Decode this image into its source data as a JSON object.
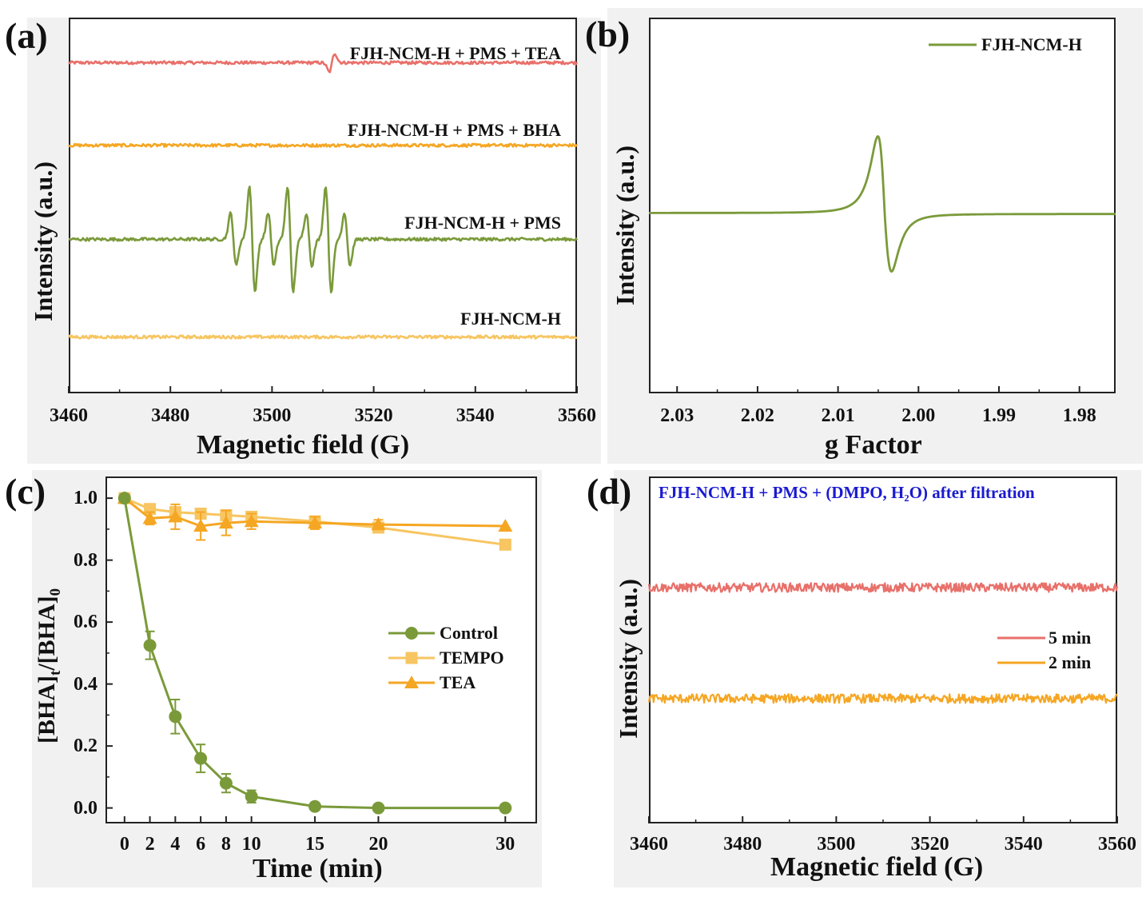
{
  "panels": {
    "a": {
      "letter": "(a)"
    },
    "b": {
      "letter": "(b)"
    },
    "c": {
      "letter": "(c)"
    },
    "d": {
      "letter": "(d)"
    }
  },
  "chart_data": [
    {
      "id": "a",
      "type": "line",
      "xlabel": "Magnetic field (G)",
      "ylabel": "Intensity (a.u.)",
      "xlim": [
        3460,
        3560
      ],
      "xticks": [
        3460,
        3480,
        3500,
        3520,
        3540,
        3560
      ],
      "series": [
        {
          "name": "FJH-NCM-H + PMS + TEA",
          "color": "#e8706a",
          "offset": 0.88,
          "features": [
            {
              "x": 3511.8,
              "amp": -0.025
            }
          ]
        },
        {
          "name": "FJH-NCM-H + PMS + BHA",
          "color": "#f5a623",
          "offset": 0.66,
          "features": []
        },
        {
          "name": "FJH-NCM-H + PMS",
          "color": "#7a9a3a",
          "offset": 0.41,
          "features": [
            {
              "x": 3492.4,
              "amp": 0.07
            },
            {
              "x": 3496.1,
              "amp": 0.14
            },
            {
              "x": 3499.8,
              "amp": 0.07
            },
            {
              "x": 3503.6,
              "amp": 0.14
            },
            {
              "x": 3507.3,
              "amp": 0.07
            },
            {
              "x": 3511.1,
              "amp": 0.14
            },
            {
              "x": 3514.8,
              "amp": 0.07
            }
          ]
        },
        {
          "name": "FJH-NCM-H",
          "color": "#f7c561",
          "offset": 0.15,
          "features": []
        }
      ]
    },
    {
      "id": "b",
      "type": "line",
      "xlabel": "g Factor",
      "ylabel": "Intensity (a.u.)",
      "xlim": [
        2.0335,
        1.9755
      ],
      "xticks": [
        2.03,
        2.02,
        2.01,
        2.0,
        1.99,
        1.98
      ],
      "xtick_labels": [
        "2.03",
        "2.02",
        "2.01",
        "2.00",
        "1.99",
        "1.98"
      ],
      "series": [
        {
          "name": "FJH-NCM-H",
          "color": "#7a9a3a",
          "center": 2.0042,
          "peak": 0.8,
          "trough": -0.6
        }
      ]
    },
    {
      "id": "c",
      "type": "line",
      "xlabel": "Time (min)",
      "ylabel_main": "[BHA]",
      "ylabel_sub1": "t",
      "ylabel_mid": "/[BHA]",
      "ylabel_sub2": "0",
      "xlim": [
        -1.5,
        32.5
      ],
      "ylim": [
        -0.05,
        1.07
      ],
      "xticks": [
        0,
        2,
        4,
        6,
        8,
        10,
        15,
        20,
        30
      ],
      "yticks": [
        0.0,
        0.2,
        0.4,
        0.6,
        0.8,
        1.0
      ],
      "ytick_labels": [
        "0.0",
        "0.2",
        "0.4",
        "0.6",
        "0.8",
        "1.0"
      ],
      "series": [
        {
          "name": "Control",
          "color": "#7a9a3a",
          "marker": "circle",
          "x": [
            0,
            2,
            4,
            6,
            8,
            10,
            15,
            20,
            30
          ],
          "y": [
            1.0,
            0.525,
            0.295,
            0.16,
            0.08,
            0.037,
            0.005,
            0.0,
            0.0
          ],
          "err": [
            0.01,
            0.045,
            0.055,
            0.045,
            0.03,
            0.02,
            0.0,
            0.0,
            0.0
          ]
        },
        {
          "name": "TEMPO",
          "color": "#f7c561",
          "marker": "square",
          "x": [
            0,
            2,
            4,
            6,
            8,
            10,
            15,
            20,
            30
          ],
          "y": [
            1.0,
            0.965,
            0.955,
            0.95,
            0.945,
            0.94,
            0.925,
            0.905,
            0.85
          ],
          "err": [
            0.0,
            0.01,
            0.01,
            0.01,
            0.01,
            0.01,
            0.01,
            0.01,
            0.0
          ]
        },
        {
          "name": "TEA",
          "color": "#f5a623",
          "marker": "triangle",
          "x": [
            0,
            2,
            4,
            6,
            8,
            10,
            15,
            20,
            30
          ],
          "y": [
            1.0,
            0.935,
            0.94,
            0.91,
            0.92,
            0.925,
            0.92,
            0.915,
            0.91
          ],
          "err": [
            0.01,
            0.02,
            0.04,
            0.045,
            0.04,
            0.025,
            0.02,
            0.015,
            0.0
          ]
        }
      ]
    },
    {
      "id": "d",
      "type": "line",
      "title": "FJH-NCM-H + PMS + (DMPO, H₂O) after filtration",
      "xlabel": "Magnetic field (G)",
      "ylabel": "Intensity (a.u.)",
      "xlim": [
        3460,
        3560
      ],
      "xticks": [
        3460,
        3480,
        3500,
        3520,
        3540,
        3560
      ],
      "series": [
        {
          "name": "5 min",
          "color": "#e8706a",
          "offset": 0.68
        },
        {
          "name": "2 min",
          "color": "#f5a623",
          "offset": 0.36
        }
      ]
    }
  ]
}
